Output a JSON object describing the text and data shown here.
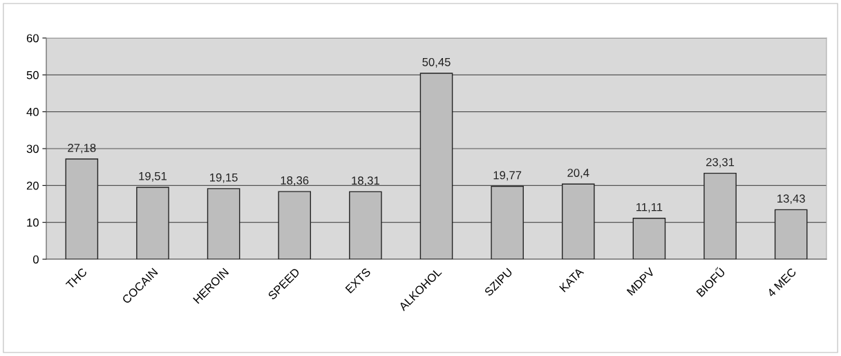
{
  "chart_data": {
    "type": "bar",
    "categories": [
      "THC",
      "COCAIN",
      "HEROIN",
      "SPEED",
      "EXTS",
      "ALKOHOL",
      "SZIPU",
      "KATA",
      "MDPV",
      "BIOFŰ",
      "4 MEC"
    ],
    "values": [
      27.18,
      19.51,
      19.15,
      18.36,
      18.31,
      50.45,
      19.77,
      20.4,
      11.11,
      23.31,
      13.43
    ],
    "value_labels": [
      "27,18",
      "19,51",
      "19,15",
      "18,36",
      "18,31",
      "50,45",
      "19,77",
      "20,4",
      "11,11",
      "23,31",
      "13,43"
    ],
    "color": "#bdbdbd",
    "ylim": [
      0,
      60
    ],
    "yticks": [
      0,
      10,
      20,
      30,
      40,
      50,
      60
    ],
    "grid": "y"
  }
}
